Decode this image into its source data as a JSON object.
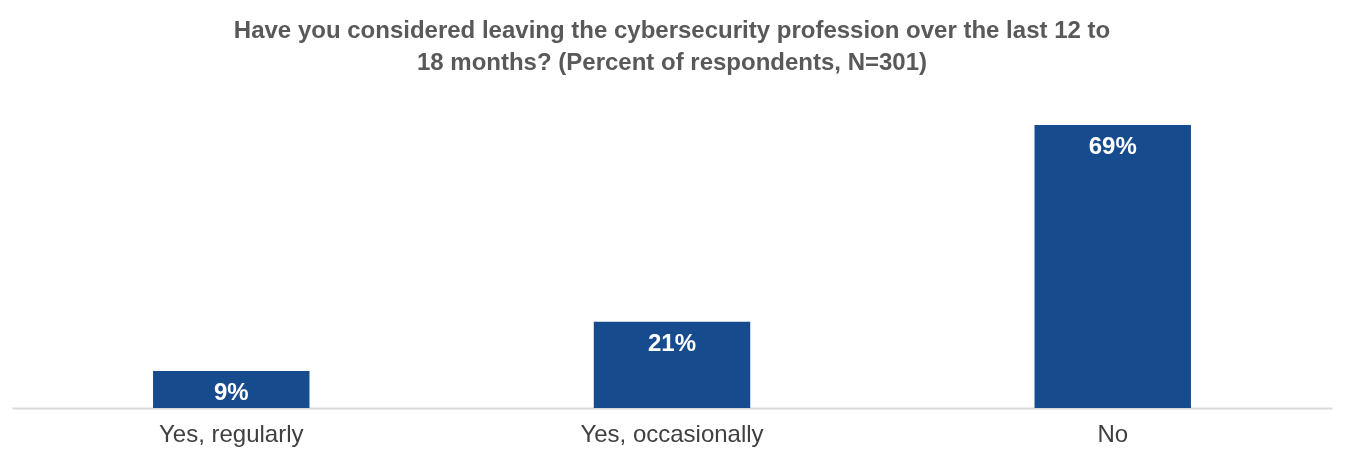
{
  "chart_data": {
    "type": "bar",
    "title": [
      "Have you considered leaving the cybersecurity profession over the last 12 to",
      "18 months? (Percent of respondents, N=301)"
    ],
    "categories": [
      "Yes, regularly",
      "Yes, occasionally",
      "No"
    ],
    "values": [
      9,
      21,
      69
    ],
    "value_labels": [
      "9%",
      "21%",
      "69%"
    ],
    "color": "#164c8e"
  }
}
